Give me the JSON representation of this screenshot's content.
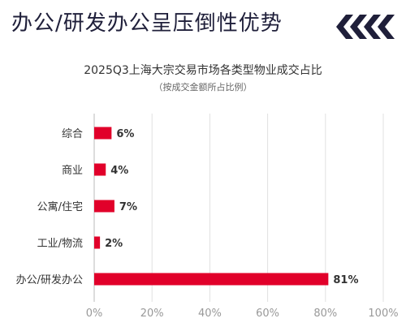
{
  "header": {
    "headline": "办公/研发办公呈压倒性优势",
    "decoration": "chevron-arrows-icon",
    "accent_color": "#1f1f3a"
  },
  "chart_data": {
    "type": "bar",
    "orientation": "horizontal",
    "title": "2025Q3上海大宗交易市场各类型物业成交占比",
    "subtitle": "（按成交金额所占比例）",
    "categories": [
      "综合",
      "商业",
      "公寓/住宅",
      "工业/物流",
      "办公/研发办公"
    ],
    "values": [
      6,
      4,
      7,
      2,
      81
    ],
    "value_labels": [
      "6%",
      "4%",
      "7%",
      "2%",
      "81%"
    ],
    "x_ticks": [
      "0%",
      "20%",
      "40%",
      "60%",
      "80%",
      "100%"
    ],
    "xlim": [
      0,
      100
    ],
    "grid": true,
    "bar_color": "#e1002a"
  }
}
